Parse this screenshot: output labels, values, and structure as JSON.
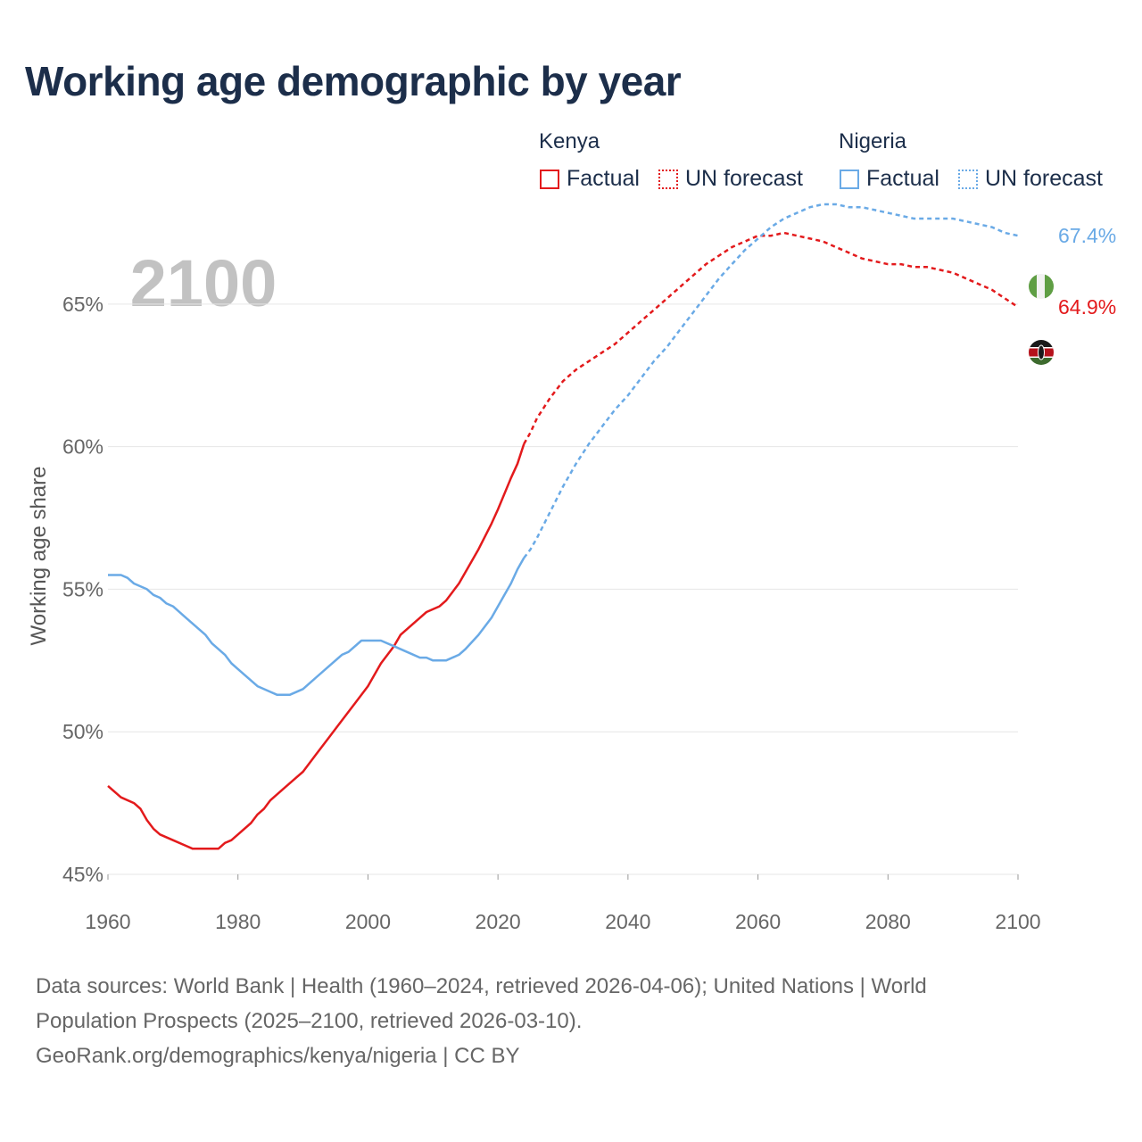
{
  "title": "Working age demographic by year",
  "year_label": "2100",
  "legend": {
    "groups": [
      {
        "name": "Kenya",
        "color": "#e31a1c",
        "factual": "Factual",
        "forecast": "UN forecast"
      },
      {
        "name": "Nigeria",
        "color": "#6aaae6",
        "factual": "Factual",
        "forecast": "UN forecast"
      }
    ]
  },
  "footer": {
    "line1": "Data sources: World Bank | Health (1960–2024, retrieved 2026-04-06); United Nations | World",
    "line2": "Population Prospects (2025–2100, retrieved 2026-03-10).",
    "line3": "GeoRank.org/demographics/kenya/nigeria | CC BY"
  },
  "chart_data": {
    "type": "line",
    "title": "Working age demographic by year",
    "xlabel": "",
    "ylabel": "Working age share",
    "xlim": [
      1960,
      2100
    ],
    "ylim": [
      45,
      68
    ],
    "x_ticks": [
      1960,
      1980,
      2000,
      2020,
      2040,
      2060,
      2080,
      2100
    ],
    "y_ticks": [
      45,
      50,
      55,
      60,
      65
    ],
    "y_tick_labels": [
      "45%",
      "50%",
      "55%",
      "60%",
      "65%"
    ],
    "factual_end_year": 2024,
    "series": [
      {
        "name": "Kenya",
        "color": "#e31a1c",
        "end_label": "64.9%",
        "flag": "kenya",
        "points": [
          [
            1960,
            48.1
          ],
          [
            1962,
            47.7
          ],
          [
            1964,
            47.5
          ],
          [
            1965,
            47.3
          ],
          [
            1966,
            46.9
          ],
          [
            1967,
            46.6
          ],
          [
            1968,
            46.4
          ],
          [
            1970,
            46.2
          ],
          [
            1972,
            46.0
          ],
          [
            1973,
            45.9
          ],
          [
            1975,
            45.9
          ],
          [
            1977,
            45.9
          ],
          [
            1978,
            46.1
          ],
          [
            1979,
            46.2
          ],
          [
            1980,
            46.4
          ],
          [
            1982,
            46.8
          ],
          [
            1983,
            47.1
          ],
          [
            1984,
            47.3
          ],
          [
            1985,
            47.6
          ],
          [
            1987,
            48.0
          ],
          [
            1989,
            48.4
          ],
          [
            1990,
            48.6
          ],
          [
            1992,
            49.2
          ],
          [
            1994,
            49.8
          ],
          [
            1996,
            50.4
          ],
          [
            1998,
            51.0
          ],
          [
            2000,
            51.6
          ],
          [
            2002,
            52.4
          ],
          [
            2004,
            53.0
          ],
          [
            2005,
            53.4
          ],
          [
            2007,
            53.8
          ],
          [
            2008,
            54.0
          ],
          [
            2009,
            54.2
          ],
          [
            2011,
            54.4
          ],
          [
            2012,
            54.6
          ],
          [
            2014,
            55.2
          ],
          [
            2016,
            56.0
          ],
          [
            2017,
            56.4
          ],
          [
            2019,
            57.3
          ],
          [
            2020,
            57.8
          ],
          [
            2022,
            58.9
          ],
          [
            2023,
            59.4
          ],
          [
            2024,
            60.1
          ],
          [
            2025,
            60.5
          ],
          [
            2026,
            61.0
          ],
          [
            2028,
            61.7
          ],
          [
            2030,
            62.3
          ],
          [
            2032,
            62.7
          ],
          [
            2034,
            63.0
          ],
          [
            2036,
            63.3
          ],
          [
            2038,
            63.6
          ],
          [
            2040,
            64.0
          ],
          [
            2042,
            64.4
          ],
          [
            2044,
            64.8
          ],
          [
            2046,
            65.2
          ],
          [
            2048,
            65.6
          ],
          [
            2050,
            66.0
          ],
          [
            2052,
            66.4
          ],
          [
            2054,
            66.7
          ],
          [
            2056,
            67.0
          ],
          [
            2058,
            67.2
          ],
          [
            2060,
            67.4
          ],
          [
            2062,
            67.4
          ],
          [
            2064,
            67.5
          ],
          [
            2066,
            67.4
          ],
          [
            2068,
            67.3
          ],
          [
            2070,
            67.2
          ],
          [
            2072,
            67.0
          ],
          [
            2074,
            66.8
          ],
          [
            2076,
            66.6
          ],
          [
            2078,
            66.5
          ],
          [
            2080,
            66.4
          ],
          [
            2082,
            66.4
          ],
          [
            2084,
            66.3
          ],
          [
            2086,
            66.3
          ],
          [
            2088,
            66.2
          ],
          [
            2090,
            66.1
          ],
          [
            2092,
            65.9
          ],
          [
            2094,
            65.7
          ],
          [
            2096,
            65.5
          ],
          [
            2098,
            65.2
          ],
          [
            2100,
            64.9
          ]
        ]
      },
      {
        "name": "Nigeria",
        "color": "#6aaae6",
        "end_label": "67.4%",
        "flag": "nigeria",
        "points": [
          [
            1960,
            55.5
          ],
          [
            1962,
            55.5
          ],
          [
            1963,
            55.4
          ],
          [
            1964,
            55.2
          ],
          [
            1966,
            55.0
          ],
          [
            1967,
            54.8
          ],
          [
            1968,
            54.7
          ],
          [
            1969,
            54.5
          ],
          [
            1970,
            54.4
          ],
          [
            1972,
            54.0
          ],
          [
            1974,
            53.6
          ],
          [
            1975,
            53.4
          ],
          [
            1976,
            53.1
          ],
          [
            1978,
            52.7
          ],
          [
            1979,
            52.4
          ],
          [
            1980,
            52.2
          ],
          [
            1982,
            51.8
          ],
          [
            1983,
            51.6
          ],
          [
            1985,
            51.4
          ],
          [
            1986,
            51.3
          ],
          [
            1988,
            51.3
          ],
          [
            1990,
            51.5
          ],
          [
            1992,
            51.9
          ],
          [
            1994,
            52.3
          ],
          [
            1996,
            52.7
          ],
          [
            1997,
            52.8
          ],
          [
            1999,
            53.2
          ],
          [
            2000,
            53.2
          ],
          [
            2002,
            53.2
          ],
          [
            2004,
            53.0
          ],
          [
            2006,
            52.8
          ],
          [
            2008,
            52.6
          ],
          [
            2009,
            52.6
          ],
          [
            2010,
            52.5
          ],
          [
            2012,
            52.5
          ],
          [
            2014,
            52.7
          ],
          [
            2015,
            52.9
          ],
          [
            2017,
            53.4
          ],
          [
            2019,
            54.0
          ],
          [
            2021,
            54.8
          ],
          [
            2022,
            55.2
          ],
          [
            2023,
            55.7
          ],
          [
            2024,
            56.1
          ],
          [
            2025,
            56.4
          ],
          [
            2026,
            56.8
          ],
          [
            2028,
            57.7
          ],
          [
            2030,
            58.6
          ],
          [
            2032,
            59.4
          ],
          [
            2034,
            60.1
          ],
          [
            2036,
            60.7
          ],
          [
            2038,
            61.3
          ],
          [
            2040,
            61.8
          ],
          [
            2042,
            62.4
          ],
          [
            2044,
            63.0
          ],
          [
            2046,
            63.5
          ],
          [
            2048,
            64.1
          ],
          [
            2050,
            64.7
          ],
          [
            2052,
            65.3
          ],
          [
            2054,
            65.9
          ],
          [
            2056,
            66.4
          ],
          [
            2058,
            66.9
          ],
          [
            2060,
            67.3
          ],
          [
            2062,
            67.7
          ],
          [
            2064,
            68.0
          ],
          [
            2066,
            68.2
          ],
          [
            2068,
            68.4
          ],
          [
            2070,
            68.5
          ],
          [
            2072,
            68.5
          ],
          [
            2074,
            68.4
          ],
          [
            2076,
            68.4
          ],
          [
            2078,
            68.3
          ],
          [
            2080,
            68.2
          ],
          [
            2082,
            68.1
          ],
          [
            2084,
            68.0
          ],
          [
            2086,
            68.0
          ],
          [
            2088,
            68.0
          ],
          [
            2090,
            68.0
          ],
          [
            2092,
            67.9
          ],
          [
            2094,
            67.8
          ],
          [
            2096,
            67.7
          ],
          [
            2098,
            67.5
          ],
          [
            2100,
            67.4
          ]
        ]
      }
    ]
  }
}
